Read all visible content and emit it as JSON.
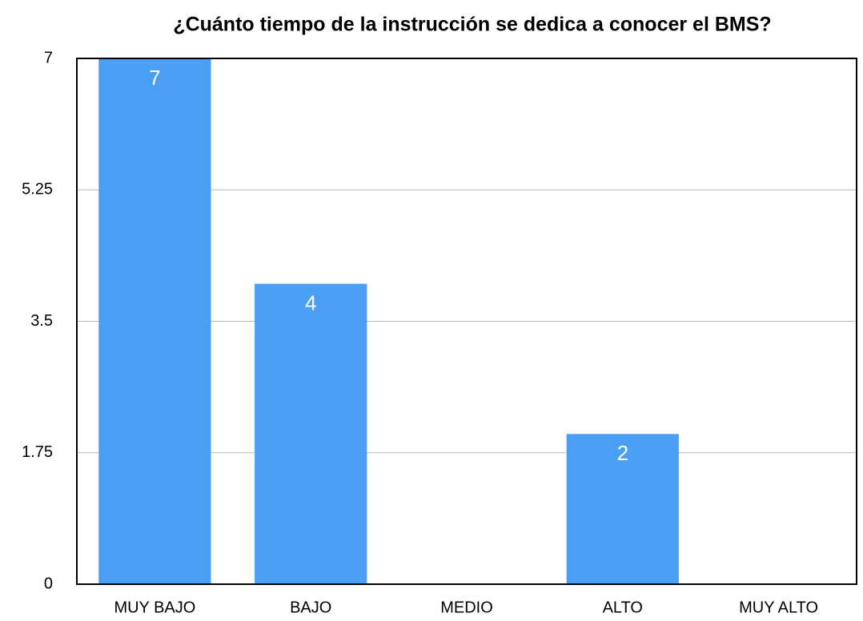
{
  "chart_data": {
    "type": "bar",
    "title": "¿Cuánto tiempo de la instrucción se dedica a conocer el BMS?",
    "categories": [
      "MUY BAJO",
      "BAJO",
      "MEDIO",
      "ALTO",
      "MUY ALTO"
    ],
    "values": [
      7,
      4,
      0,
      2,
      0
    ],
    "color": "#4a9ff5",
    "ylim": [
      0,
      7
    ],
    "yticks": [
      0,
      1.75,
      3.5,
      5.25,
      7
    ],
    "grid": true
  }
}
